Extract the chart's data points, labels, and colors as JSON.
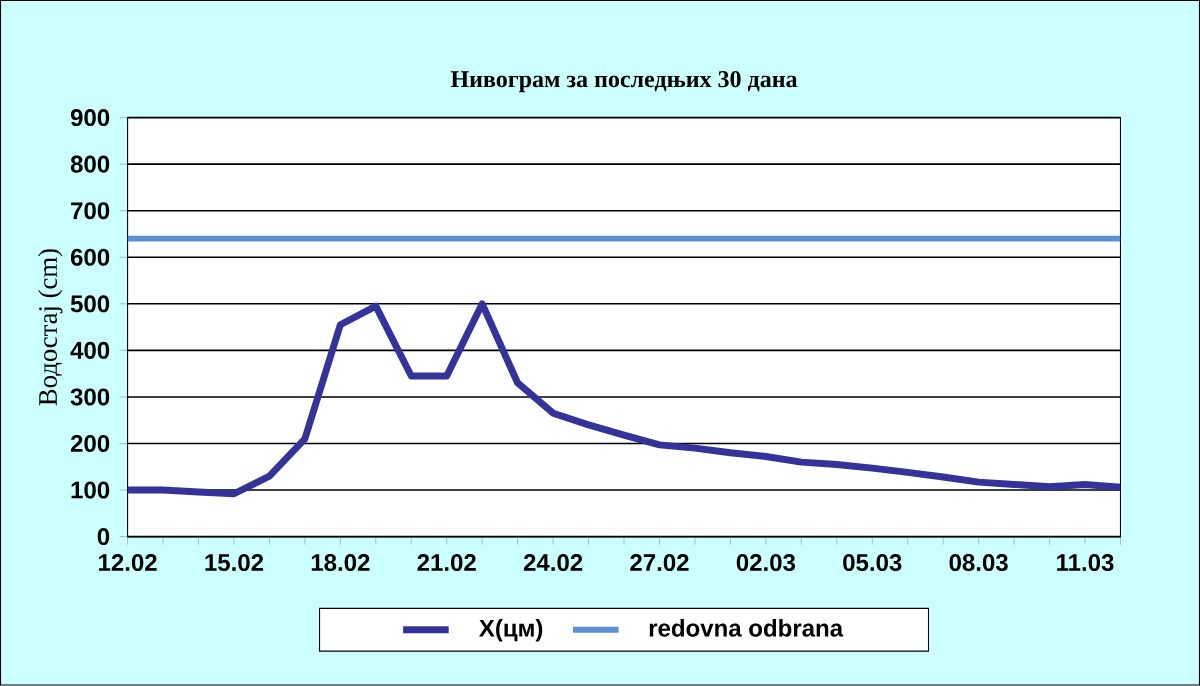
{
  "chart_data": {
    "type": "line",
    "title": "Нивограм за последњих 30 дана",
    "ylabel": "Водостај (cm)",
    "categories": [
      "12.02",
      null,
      null,
      "15.02",
      null,
      null,
      "18.02",
      null,
      null,
      "21.02",
      null,
      null,
      "24.02",
      null,
      null,
      "27.02",
      null,
      null,
      "02.03",
      null,
      null,
      "05.03",
      null,
      null,
      "08.03",
      null,
      null,
      "11.03",
      null
    ],
    "series": [
      {
        "name": "X(цм)",
        "color": "#333399",
        "values": [
          100,
          100,
          96,
          92,
          130,
          210,
          455,
          495,
          345,
          345,
          500,
          330,
          265,
          240,
          218,
          197,
          190,
          180,
          172,
          160,
          155,
          147,
          138,
          128,
          117,
          112,
          107,
          112,
          106
        ]
      }
    ],
    "ref_lines": [
      {
        "axis": "y",
        "value": 640,
        "label": "redovna odbrana",
        "color": "#5b8fd6"
      }
    ],
    "ylim": [
      0,
      900
    ],
    "yticks": [
      0,
      100,
      200,
      300,
      400,
      500,
      600,
      700,
      800,
      900
    ],
    "grid": "y",
    "legend": "bottom",
    "marker": "none",
    "line_style": "solid"
  }
}
